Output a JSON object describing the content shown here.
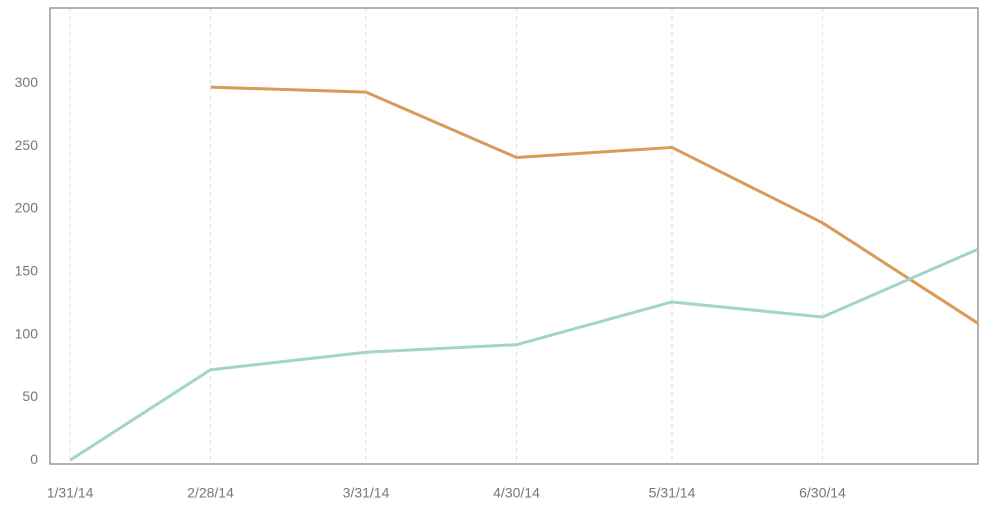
{
  "chart_data": {
    "type": "line",
    "x": [
      "2014-01-31",
      "2014-02-28",
      "2014-03-31",
      "2014-04-30",
      "2014-05-31",
      "2014-06-30",
      "2014-07-31"
    ],
    "series": [
      {
        "color": "#d99b57",
        "values": [
          null,
          297,
          293,
          241,
          249,
          189,
          109
        ]
      },
      {
        "color": "#a3d4c9",
        "values": [
          0,
          72,
          86,
          92,
          126,
          114,
          168
        ]
      }
    ],
    "xlim": [
      "2014-01-27",
      "2014-07-31"
    ],
    "xticks": [
      {
        "value": "2014-01-31",
        "label": "1/31/14"
      },
      {
        "value": "2014-02-28",
        "label": "2/28/14"
      },
      {
        "value": "2014-03-31",
        "label": "3/31/14"
      },
      {
        "value": "2014-04-30",
        "label": "4/30/14"
      },
      {
        "value": "2014-05-31",
        "label": "5/31/14"
      },
      {
        "value": "2014-06-30",
        "label": "6/30/14"
      }
    ],
    "ylim": [
      -3,
      360
    ],
    "yticks": [
      0,
      50,
      100,
      150,
      200,
      250,
      300
    ],
    "grid": "x"
  }
}
